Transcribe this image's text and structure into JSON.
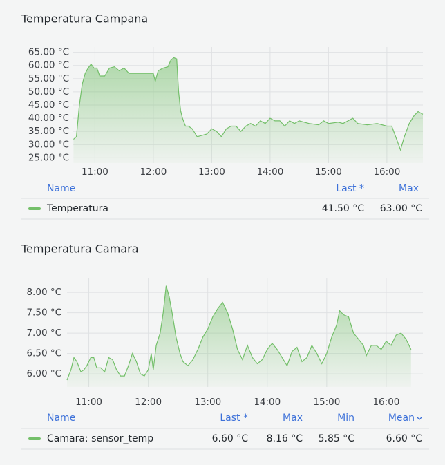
{
  "chart_data": [
    {
      "type": "line",
      "title": "Temperatura Campana",
      "x": [
        "10:38",
        "10:41",
        "10:44",
        "10:47",
        "10:50",
        "10:53",
        "10:56",
        "10:59",
        "11:02",
        "11:05",
        "11:10",
        "11:15",
        "11:20",
        "11:25",
        "11:30",
        "11:35",
        "11:40",
        "11:50",
        "11:55",
        "12:00",
        "12:02",
        "12:05",
        "12:10",
        "12:15",
        "12:18",
        "12:21",
        "12:24",
        "12:26",
        "12:28",
        "12:30",
        "12:33",
        "12:36",
        "12:40",
        "12:45",
        "12:50",
        "12:55",
        "13:00",
        "13:05",
        "13:10",
        "13:15",
        "13:20",
        "13:25",
        "13:30",
        "13:35",
        "13:40",
        "13:45",
        "13:50",
        "13:55",
        "14:00",
        "14:05",
        "14:10",
        "14:15",
        "14:20",
        "14:25",
        "14:30",
        "14:40",
        "14:50",
        "14:55",
        "15:00",
        "15:10",
        "15:15",
        "15:20",
        "15:25",
        "15:30",
        "15:40",
        "15:50",
        "16:00",
        "16:05",
        "16:10",
        "16:14",
        "16:18",
        "16:23",
        "16:28",
        "16:32",
        "16:37"
      ],
      "series": [
        {
          "name": "Temperatura",
          "color": "#73bf69",
          "values": [
            32,
            33,
            45,
            53,
            57,
            59,
            60.5,
            59,
            59,
            56,
            56,
            59,
            59.5,
            58,
            59,
            57,
            57,
            57,
            57,
            57,
            54,
            58,
            59,
            59.5,
            62,
            63,
            62.5,
            50,
            43,
            40,
            37,
            37,
            36,
            33,
            33.5,
            34,
            36,
            35,
            33,
            36,
            37,
            37,
            35,
            37,
            38,
            37,
            39,
            38,
            40,
            39,
            39,
            37,
            39,
            38,
            39,
            38,
            37.5,
            39,
            38,
            38.5,
            38,
            39,
            40,
            38,
            37.5,
            38,
            37,
            37,
            32,
            28,
            33,
            38,
            41,
            42.5,
            41.5
          ]
        }
      ],
      "xlim": [
        "10:37",
        "16:37"
      ],
      "xticks": [
        "11:00",
        "12:00",
        "13:00",
        "14:00",
        "15:00",
        "16:00"
      ],
      "ylim": [
        23,
        67
      ],
      "yticks": [
        {
          "value": 25,
          "label": "25.00 °C"
        },
        {
          "value": 30,
          "label": "30.00 °C"
        },
        {
          "value": 35,
          "label": "35.00 °C"
        },
        {
          "value": 40,
          "label": "40.00 °C"
        },
        {
          "value": 45,
          "label": "45.00 °C"
        },
        {
          "value": 50,
          "label": "50.00 °C"
        },
        {
          "value": 55,
          "label": "55.00 °C"
        },
        {
          "value": 60,
          "label": "60.00 °C"
        },
        {
          "value": 65,
          "label": "65.00 °C"
        }
      ],
      "grid": true,
      "legend": {
        "columns": [
          "Name",
          "Last *",
          "Max"
        ],
        "rows": [
          [
            "41.50 °C",
            "63.00 °C"
          ]
        ]
      }
    },
    {
      "type": "line",
      "title": "Temperatura Camara",
      "x": [
        "10:38",
        "10:42",
        "10:45",
        "10:48",
        "10:52",
        "10:55",
        "10:58",
        "11:02",
        "11:05",
        "11:08",
        "11:12",
        "11:16",
        "11:20",
        "11:24",
        "11:28",
        "11:32",
        "11:36",
        "11:40",
        "11:44",
        "11:48",
        "11:52",
        "11:56",
        "12:00",
        "12:03",
        "12:05",
        "12:08",
        "12:12",
        "12:15",
        "12:18",
        "12:21",
        "12:24",
        "12:28",
        "12:32",
        "12:35",
        "12:40",
        "12:45",
        "12:50",
        "12:55",
        "13:00",
        "13:05",
        "13:10",
        "13:15",
        "13:20",
        "13:25",
        "13:30",
        "13:35",
        "13:40",
        "13:45",
        "13:50",
        "13:55",
        "14:00",
        "14:05",
        "14:10",
        "14:15",
        "14:20",
        "14:25",
        "14:30",
        "14:35",
        "14:40",
        "14:45",
        "14:50",
        "14:55",
        "15:00",
        "15:05",
        "15:10",
        "15:13",
        "15:17",
        "15:22",
        "15:27",
        "15:32",
        "15:37",
        "15:40",
        "15:45",
        "15:50",
        "15:55",
        "16:00",
        "16:05",
        "16:10",
        "16:15",
        "16:20",
        "16:25"
      ],
      "series": [
        {
          "name": "Camara: sensor_temp",
          "color": "#73bf69",
          "values": [
            5.85,
            6.1,
            6.4,
            6.3,
            6.05,
            6.1,
            6.2,
            6.4,
            6.4,
            6.15,
            6.15,
            6.05,
            6.4,
            6.35,
            6.1,
            5.95,
            5.95,
            6.2,
            6.5,
            6.3,
            6.0,
            5.95,
            6.1,
            6.5,
            6.1,
            6.7,
            7.0,
            7.5,
            8.16,
            7.9,
            7.5,
            6.9,
            6.5,
            6.3,
            6.2,
            6.35,
            6.6,
            6.9,
            7.1,
            7.4,
            7.6,
            7.75,
            7.5,
            7.1,
            6.6,
            6.35,
            6.7,
            6.4,
            6.25,
            6.35,
            6.6,
            6.75,
            6.6,
            6.4,
            6.2,
            6.55,
            6.65,
            6.3,
            6.4,
            6.7,
            6.5,
            6.25,
            6.5,
            6.9,
            7.2,
            7.55,
            7.45,
            7.4,
            7.0,
            6.85,
            6.7,
            6.45,
            6.7,
            6.7,
            6.6,
            6.8,
            6.7,
            6.95,
            7.0,
            6.85,
            6.6
          ]
        }
      ],
      "xlim": [
        "10:38",
        "16:37"
      ],
      "xticks": [
        "11:00",
        "12:00",
        "13:00",
        "14:00",
        "15:00",
        "16:00"
      ],
      "ylim": [
        5.68,
        8.34
      ],
      "yticks": [
        {
          "value": 6,
          "label": "6.00 °C"
        },
        {
          "value": 6.5,
          "label": "6.50 °C"
        },
        {
          "value": 7,
          "label": "7.00 °C"
        },
        {
          "value": 7.5,
          "label": "7.50 °C"
        },
        {
          "value": 8,
          "label": "8.00 °C"
        }
      ],
      "grid": true,
      "legend": {
        "columns": [
          "Name",
          "Last *",
          "Max",
          "Min",
          "Mean"
        ],
        "rows": [
          [
            "6.60 °C",
            "8.16 °C",
            "5.85 °C",
            "6.60 °C"
          ]
        ]
      }
    }
  ]
}
